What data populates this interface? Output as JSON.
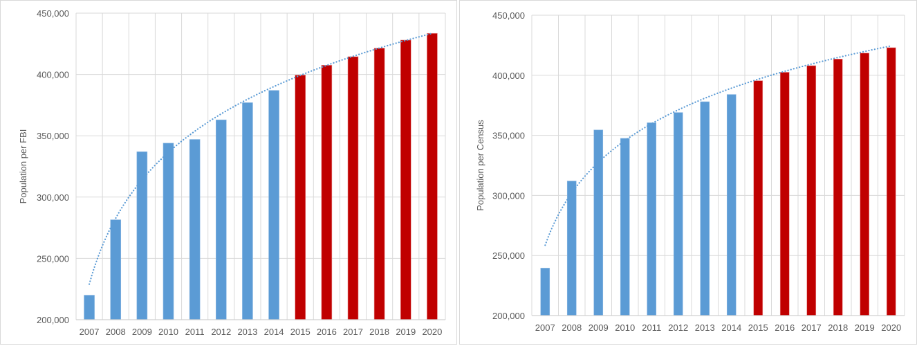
{
  "colors": {
    "historical": "#5B9BD5",
    "projected": "#C00000",
    "trendline": "#5B9BD5",
    "gridline": "#D9D9D9",
    "text": "#595959"
  },
  "chart_data": [
    {
      "type": "bar",
      "title": "",
      "xlabel": "",
      "ylabel": "Population per FBI",
      "ylim": [
        200000,
        450000
      ],
      "yticks": [
        "200,000",
        "250,000",
        "300,000",
        "350,000",
        "400,000",
        "450,000"
      ],
      "grid": true,
      "legend": null,
      "categories": [
        "2007",
        "2008",
        "2009",
        "2010",
        "2011",
        "2012",
        "2013",
        "2014",
        "2015",
        "2016",
        "2017",
        "2018",
        "2019",
        "2020"
      ],
      "values": [
        220000,
        281500,
        337000,
        344000,
        347000,
        363000,
        377000,
        387000,
        399500,
        407500,
        414500,
        421500,
        428000,
        433500
      ],
      "bar_types": [
        "historical",
        "historical",
        "historical",
        "historical",
        "historical",
        "historical",
        "historical",
        "historical",
        "projected",
        "projected",
        "projected",
        "projected",
        "projected",
        "projected"
      ],
      "trendline": {
        "type": "logarithmic",
        "style": "dotted",
        "start_value": 229000,
        "end_value": 433500
      }
    },
    {
      "type": "bar",
      "title": "",
      "xlabel": "",
      "ylabel": "Population per Census",
      "ylim": [
        200000,
        450000
      ],
      "yticks": [
        "200,000",
        "250,000",
        "300,000",
        "350,000",
        "400,000",
        "450,000"
      ],
      "grid": true,
      "legend": null,
      "categories": [
        "2007",
        "2008",
        "2009",
        "2010",
        "2011",
        "2012",
        "2013",
        "2014",
        "2015",
        "2016",
        "2017",
        "2018",
        "2019",
        "2020"
      ],
      "values": [
        239500,
        312000,
        354500,
        347500,
        360500,
        369000,
        378000,
        384000,
        395500,
        402500,
        408000,
        413500,
        418500,
        423000
      ],
      "bar_types": [
        "historical",
        "historical",
        "historical",
        "historical",
        "historical",
        "historical",
        "historical",
        "historical",
        "projected",
        "projected",
        "projected",
        "projected",
        "projected",
        "projected"
      ],
      "trendline": {
        "type": "logarithmic",
        "style": "dotted",
        "start_value": 258500,
        "end_value": 424500
      }
    }
  ],
  "left_chart": {
    "ylabel": "Population per FBI"
  },
  "right_chart": {
    "ylabel": "Population per Census"
  }
}
